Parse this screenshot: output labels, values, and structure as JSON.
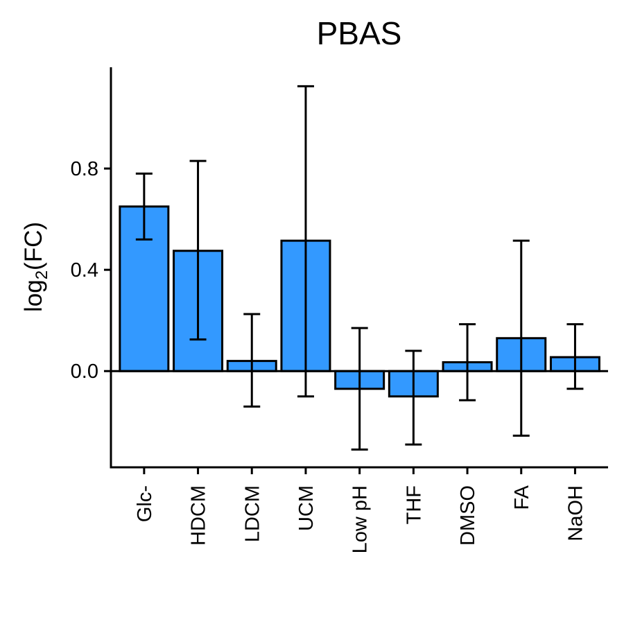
{
  "chart_data": {
    "type": "bar",
    "title": "PBAS",
    "ylabel": {
      "base": "log",
      "sub": "2",
      "rest": "(FC)"
    },
    "xlabel": "",
    "categories": [
      "Glc-",
      "HDCM",
      "LDCM",
      "UCM",
      "Low pH",
      "THF",
      "DMSO",
      "FA",
      "NaOH"
    ],
    "values": [
      0.65,
      0.475,
      0.04,
      0.515,
      -0.07,
      -0.1,
      0.035,
      0.13,
      0.055
    ],
    "error_low": [
      0.52,
      0.125,
      -0.14,
      -0.1,
      -0.31,
      -0.29,
      -0.115,
      -0.255,
      -0.07
    ],
    "error_high": [
      0.78,
      0.83,
      0.225,
      1.125,
      0.17,
      0.08,
      0.185,
      0.515,
      0.185
    ],
    "ylim": [
      -0.38,
      1.2
    ],
    "yticks": [
      0.0,
      0.4,
      0.8
    ],
    "ytick_labels": [
      "0.0",
      "0.4",
      "0.8"
    ],
    "bar_color": "#3399FF",
    "grid": false,
    "legend": "none"
  }
}
